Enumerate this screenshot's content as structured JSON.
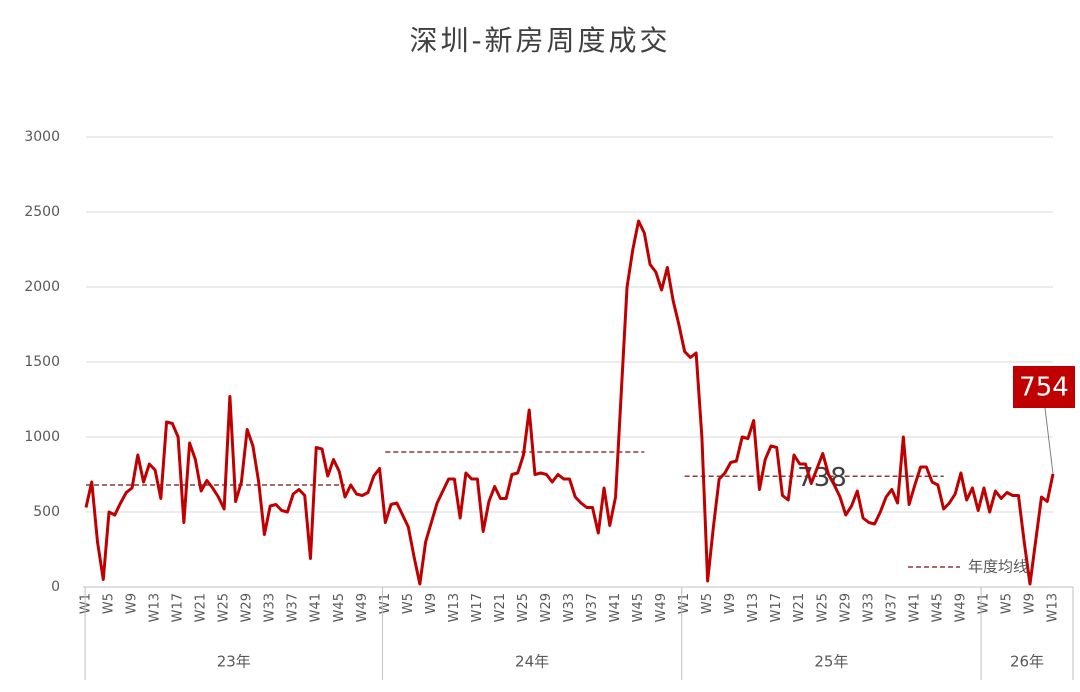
{
  "chart_data": {
    "type": "line",
    "title": "深圳-新房周度成交",
    "categories": [
      "W1",
      null,
      null,
      null,
      "W5",
      null,
      null,
      null,
      "W9",
      null,
      null,
      null,
      "W13",
      null,
      null,
      null,
      "W17",
      null,
      null,
      null,
      "W21",
      null,
      null,
      null,
      "W25",
      null,
      null,
      null,
      "W29",
      null,
      null,
      null,
      "W33",
      null,
      null,
      null,
      "W37",
      null,
      null,
      null,
      "W41",
      null,
      null,
      null,
      "W45",
      null,
      null,
      null,
      "W49",
      null,
      null,
      null,
      "W1",
      null,
      null,
      null,
      "W5",
      null,
      null,
      null,
      "W9",
      null,
      null,
      null,
      "W13",
      null,
      null,
      null,
      "W17",
      null,
      null,
      null,
      "W21",
      null,
      null,
      null,
      "W25",
      null,
      null,
      null,
      "W29",
      null,
      null,
      null,
      "W33",
      null,
      null,
      null,
      "W37",
      null,
      null,
      null,
      "W41",
      null,
      null,
      null,
      "W45",
      null,
      null,
      null,
      "W49",
      null,
      null,
      null,
      "W1",
      null,
      null,
      null,
      "W5",
      null,
      null,
      null,
      "W9",
      null,
      null,
      null,
      "W13",
      null,
      null,
      null,
      "W17",
      null,
      null,
      null,
      "W21",
      null,
      null,
      null,
      "W25",
      null,
      null,
      null,
      "W29",
      null,
      null,
      null,
      "W33",
      null,
      null,
      null,
      "W37",
      null,
      null,
      null,
      "W41",
      null,
      null,
      null,
      "W45",
      null,
      null,
      null,
      "W49",
      null,
      null,
      null,
      "W1",
      null,
      null,
      null,
      "W5",
      null,
      null,
      null,
      "W9",
      null,
      null,
      null,
      "W13"
    ],
    "groups": [
      "23年",
      "24年",
      "25年",
      "26年"
    ],
    "series": [
      {
        "color": "#c00000",
        "values": [
          530,
          700,
          300,
          50,
          500,
          480,
          560,
          630,
          660,
          880,
          700,
          820,
          780,
          590,
          1100,
          1090,
          1000,
          430,
          960,
          850,
          640,
          710,
          660,
          600,
          520,
          1270,
          570,
          700,
          1050,
          940,
          700,
          350,
          540,
          550,
          510,
          500,
          620,
          650,
          610,
          190,
          930,
          920,
          740,
          850,
          770,
          600,
          680,
          620,
          610,
          630,
          740,
          790,
          430,
          550,
          560,
          480,
          400,
          200,
          20,
          300,
          430,
          560,
          640,
          720,
          720,
          460,
          760,
          720,
          720,
          370,
          570,
          670,
          590,
          590,
          750,
          760,
          880,
          1180,
          750,
          760,
          750,
          700,
          750,
          720,
          720,
          600,
          560,
          530,
          530,
          360,
          660,
          410,
          600,
          1300,
          2000,
          2250,
          2440,
          2360,
          2150,
          2100,
          1980,
          2130,
          1910,
          1750,
          1570,
          1530,
          1560,
          1000,
          40,
          400,
          720,
          760,
          830,
          840,
          1000,
          990,
          1110,
          650,
          850,
          940,
          930,
          610,
          580,
          880,
          820,
          820,
          690,
          790,
          890,
          750,
          680,
          600,
          480,
          540,
          640,
          460,
          430,
          420,
          500,
          600,
          650,
          560,
          1000,
          550,
          680,
          800,
          800,
          700,
          680,
          520,
          560,
          620,
          760,
          580,
          660,
          510,
          660,
          500,
          640,
          590,
          630,
          610,
          610,
          300,
          20,
          310,
          600,
          570,
          754
        ]
      }
    ],
    "average_name": "年度均线",
    "averages": [
      680,
      900,
      738
    ],
    "average_color": "#8b3a3a",
    "ylim": [
      0,
      3000
    ],
    "yticks": [
      0,
      500,
      1000,
      1500,
      2000,
      2500,
      3000
    ],
    "grid": true
  }
}
